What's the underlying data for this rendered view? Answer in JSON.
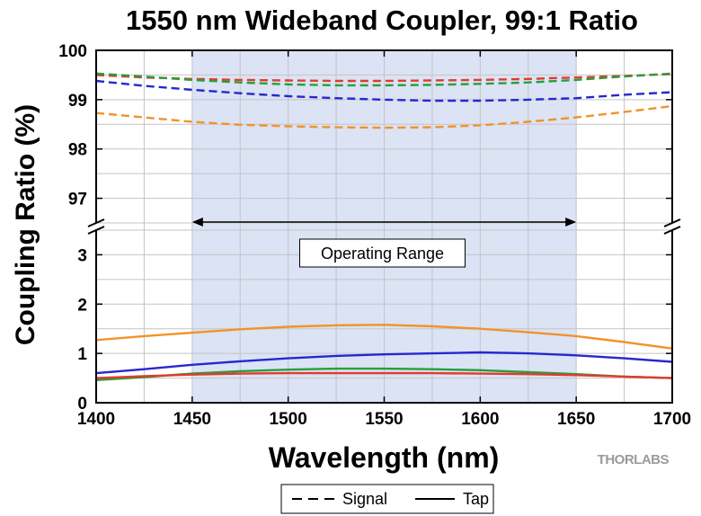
{
  "chart_data": {
    "type": "line",
    "title": "1550 nm Wideband Coupler, 99:1 Ratio",
    "xlabel": "Wavelength (nm)",
    "ylabel": "Coupling Ratio (%)",
    "xlim": [
      1400,
      1700
    ],
    "x_ticks": [
      1400,
      1450,
      1500,
      1550,
      1600,
      1650,
      1700
    ],
    "upper_ylim": [
      96.5,
      100
    ],
    "upper_ticks": [
      97,
      98,
      99,
      100
    ],
    "lower_ylim": [
      0,
      3.5
    ],
    "lower_ticks": [
      0,
      1,
      2,
      3
    ],
    "grid": true,
    "operating_range": {
      "label": "Operating Range",
      "start": 1450,
      "end": 1650,
      "color": "#dbe3f4"
    },
    "x": [
      1400,
      1425,
      1450,
      1475,
      1500,
      1525,
      1550,
      1575,
      1600,
      1625,
      1650,
      1675,
      1700
    ],
    "series": [
      {
        "name": "Signal",
        "style": "dashed",
        "panel": "upper",
        "color": "#e23b2d",
        "values": [
          99.5,
          99.45,
          99.42,
          99.4,
          99.39,
          99.38,
          99.38,
          99.39,
          99.4,
          99.42,
          99.45,
          99.48,
          99.52
        ]
      },
      {
        "name": "Signal",
        "style": "dashed",
        "panel": "upper",
        "color": "#2a9e3a",
        "values": [
          99.53,
          99.47,
          99.4,
          99.35,
          99.31,
          99.29,
          99.29,
          99.3,
          99.32,
          99.35,
          99.4,
          99.47,
          99.53
        ]
      },
      {
        "name": "Signal",
        "style": "dashed",
        "panel": "upper",
        "color": "#2727d0",
        "values": [
          99.38,
          99.28,
          99.2,
          99.13,
          99.07,
          99.03,
          99.0,
          98.98,
          98.98,
          99.0,
          99.03,
          99.1,
          99.15
        ]
      },
      {
        "name": "Signal",
        "style": "dashed",
        "panel": "upper",
        "color": "#f2922a",
        "values": [
          98.73,
          98.64,
          98.55,
          98.49,
          98.46,
          98.44,
          98.43,
          98.44,
          98.48,
          98.55,
          98.64,
          98.75,
          98.87
        ]
      },
      {
        "name": "Tap",
        "style": "solid",
        "panel": "lower",
        "color": "#f2922a",
        "values": [
          1.27,
          1.35,
          1.42,
          1.49,
          1.54,
          1.57,
          1.58,
          1.55,
          1.5,
          1.43,
          1.35,
          1.23,
          1.1
        ]
      },
      {
        "name": "Tap",
        "style": "solid",
        "panel": "lower",
        "color": "#2727d0",
        "values": [
          0.6,
          0.68,
          0.77,
          0.84,
          0.9,
          0.95,
          0.98,
          1.0,
          1.02,
          1.0,
          0.96,
          0.9,
          0.83
        ]
      },
      {
        "name": "Tap",
        "style": "solid",
        "panel": "lower",
        "color": "#2a9e3a",
        "values": [
          0.46,
          0.52,
          0.59,
          0.64,
          0.67,
          0.69,
          0.69,
          0.68,
          0.66,
          0.62,
          0.58,
          0.53,
          0.5
        ]
      },
      {
        "name": "Tap",
        "style": "solid",
        "panel": "lower",
        "color": "#e23b2d",
        "values": [
          0.5,
          0.54,
          0.57,
          0.59,
          0.6,
          0.6,
          0.6,
          0.6,
          0.59,
          0.58,
          0.56,
          0.53,
          0.5
        ]
      }
    ],
    "legend": {
      "position": "bottom-center",
      "entries": [
        {
          "label": "Signal",
          "style": "dashed"
        },
        {
          "label": "Tap",
          "style": "solid"
        }
      ]
    }
  },
  "logo_text": "THORLABS"
}
